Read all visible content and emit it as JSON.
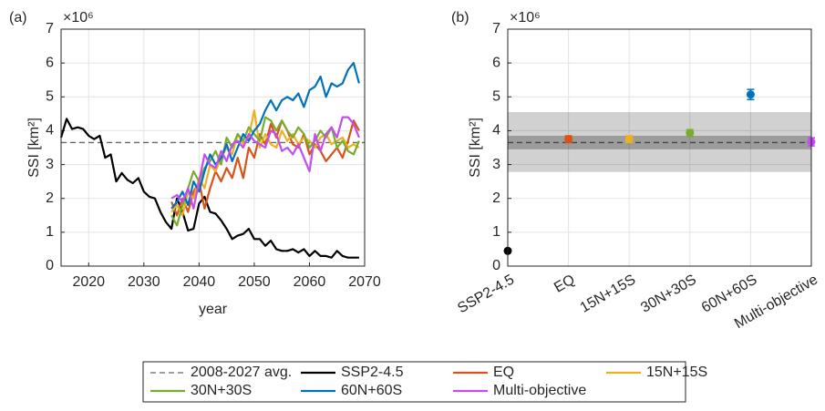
{
  "chart_data": [
    {
      "type": "line",
      "panel_label": "(a)",
      "y_multiplier": "×10⁶",
      "ylabel": "SSI [km²]",
      "xlabel": "year",
      "xlim": [
        2015,
        2070
      ],
      "xticks": [
        2020,
        2030,
        2040,
        2050,
        2060,
        2070
      ],
      "ylim": [
        0,
        7
      ],
      "yticks": [
        0,
        1,
        2,
        3,
        4,
        5,
        6,
        7
      ],
      "grid": true,
      "reference": {
        "name": "2008-2027 avg.",
        "value": 3.65,
        "color": "#666666"
      },
      "x": [
        2015,
        2016,
        2017,
        2018,
        2019,
        2020,
        2021,
        2022,
        2023,
        2024,
        2025,
        2026,
        2027,
        2028,
        2029,
        2030,
        2031,
        2032,
        2033,
        2034,
        2035,
        2036,
        2037,
        2038,
        2039,
        2040,
        2041,
        2042,
        2043,
        2044,
        2045,
        2046,
        2047,
        2048,
        2049,
        2050,
        2051,
        2052,
        2053,
        2054,
        2055,
        2056,
        2057,
        2058,
        2059,
        2060,
        2061,
        2062,
        2063,
        2064,
        2065,
        2066,
        2067,
        2068,
        2069
      ],
      "series": [
        {
          "name": "SSP2-4.5",
          "color": "#000000",
          "values": [
            3.8,
            4.35,
            4.05,
            4.1,
            4.05,
            3.85,
            3.75,
            3.85,
            3.2,
            3.3,
            2.5,
            2.75,
            2.55,
            2.45,
            2.6,
            2.2,
            2.05,
            2.0,
            1.6,
            1.3,
            1.1,
            2.0,
            1.6,
            1.05,
            1.1,
            1.85,
            2.05,
            1.6,
            1.55,
            1.35,
            1.1,
            0.8,
            0.9,
            0.95,
            1.1,
            0.8,
            0.8,
            0.6,
            0.75,
            0.5,
            0.45,
            0.45,
            0.5,
            0.4,
            0.5,
            0.3,
            0.45,
            0.3,
            0.3,
            0.25,
            0.45,
            0.3,
            0.25,
            0.25,
            0.25
          ]
        },
        {
          "name": "EQ",
          "color": "#d95319",
          "values": [
            null,
            null,
            null,
            null,
            null,
            null,
            null,
            null,
            null,
            null,
            null,
            null,
            null,
            null,
            null,
            null,
            null,
            null,
            null,
            null,
            1.9,
            1.5,
            2.0,
            1.6,
            2.2,
            2.5,
            1.7,
            2.3,
            2.8,
            2.5,
            2.9,
            2.6,
            3.2,
            2.6,
            3.5,
            3.2,
            3.9,
            3.6,
            4.2,
            3.8,
            4.3,
            4.0,
            3.6,
            3.5,
            3.9,
            3.3,
            3.6,
            3.4,
            3.1,
            3.3,
            3.5,
            3.2,
            3.7,
            4.3,
            4.0
          ]
        },
        {
          "name": "15N+15S",
          "color": "#edb120",
          "values": [
            null,
            null,
            null,
            null,
            null,
            null,
            null,
            null,
            null,
            null,
            null,
            null,
            null,
            null,
            null,
            null,
            null,
            null,
            null,
            null,
            1.6,
            1.8,
            1.5,
            2.2,
            2.0,
            2.6,
            2.3,
            3.0,
            2.8,
            3.2,
            3.5,
            3.3,
            3.9,
            3.6,
            3.8,
            4.6,
            3.5,
            3.9,
            3.6,
            3.5,
            4.0,
            3.7,
            3.9,
            3.6,
            3.8,
            3.7,
            3.5,
            3.8,
            3.9,
            3.6,
            3.7,
            3.8,
            3.5,
            3.6,
            3.5
          ]
        },
        {
          "name": "30N+30S",
          "color": "#77ac30",
          "values": [
            null,
            null,
            null,
            null,
            null,
            null,
            null,
            null,
            null,
            null,
            null,
            null,
            null,
            null,
            null,
            null,
            null,
            null,
            null,
            null,
            1.5,
            1.2,
            1.8,
            2.3,
            2.8,
            2.5,
            2.9,
            3.1,
            3.4,
            3.0,
            3.8,
            3.5,
            3.9,
            3.7,
            4.1,
            3.9,
            3.7,
            4.4,
            4.3,
            4.0,
            4.3,
            4.0,
            3.8,
            4.1,
            3.9,
            3.5,
            3.7,
            4.0,
            3.8,
            4.1,
            3.5,
            3.7,
            3.4,
            3.3,
            3.7
          ]
        },
        {
          "name": "60N+60S",
          "color": "#0072bd",
          "values": [
            null,
            null,
            null,
            null,
            null,
            null,
            null,
            null,
            null,
            null,
            null,
            null,
            null,
            null,
            null,
            null,
            null,
            null,
            null,
            null,
            1.7,
            1.9,
            2.2,
            1.8,
            2.5,
            2.2,
            2.8,
            3.3,
            3.0,
            3.2,
            3.6,
            3.1,
            3.5,
            3.9,
            3.7,
            4.0,
            4.2,
            4.6,
            4.9,
            4.6,
            4.9,
            5.0,
            4.9,
            5.1,
            4.7,
            5.2,
            5.3,
            5.6,
            5.0,
            5.4,
            5.3,
            5.4,
            5.8,
            6.0,
            5.4
          ]
        },
        {
          "name": "Multi-objective",
          "color": "#c34df0",
          "values": [
            null,
            null,
            null,
            null,
            null,
            null,
            null,
            null,
            null,
            null,
            null,
            null,
            null,
            null,
            null,
            null,
            null,
            null,
            null,
            null,
            2.0,
            2.1,
            1.9,
            2.3,
            1.7,
            2.5,
            3.3,
            3.0,
            2.9,
            3.4,
            3.1,
            3.6,
            3.7,
            3.5,
            3.9,
            3.7,
            3.6,
            3.5,
            4.0,
            3.9,
            3.4,
            3.5,
            3.3,
            3.6,
            3.2,
            2.8,
            3.9,
            3.4,
            3.9,
            4.1,
            3.8,
            4.4,
            4.4,
            4.2,
            3.8
          ]
        }
      ]
    },
    {
      "type": "errorbar",
      "panel_label": "(b)",
      "y_multiplier": "×10⁶",
      "ylabel": "SSI [km²]",
      "ylim": [
        0,
        7
      ],
      "yticks": [
        0,
        1,
        2,
        3,
        4,
        5,
        6,
        7
      ],
      "grid": true,
      "reference": {
        "value": 3.65,
        "color": "#444444"
      },
      "band_inner": [
        3.45,
        3.85
      ],
      "band_outer": [
        2.78,
        4.55
      ],
      "categories": [
        "SSP2-4.5",
        "EQ",
        "15N+15S",
        "30N+30S",
        "60N+60S",
        "Multi-objective"
      ],
      "values": [
        0.45,
        3.75,
        3.75,
        3.93,
        5.07,
        3.67
      ],
      "errors": [
        0.03,
        0.1,
        0.1,
        0.1,
        0.15,
        0.12
      ],
      "colors": [
        "#000000",
        "#d95319",
        "#edb120",
        "#77ac30",
        "#0072bd",
        "#c34df0"
      ]
    }
  ]
}
